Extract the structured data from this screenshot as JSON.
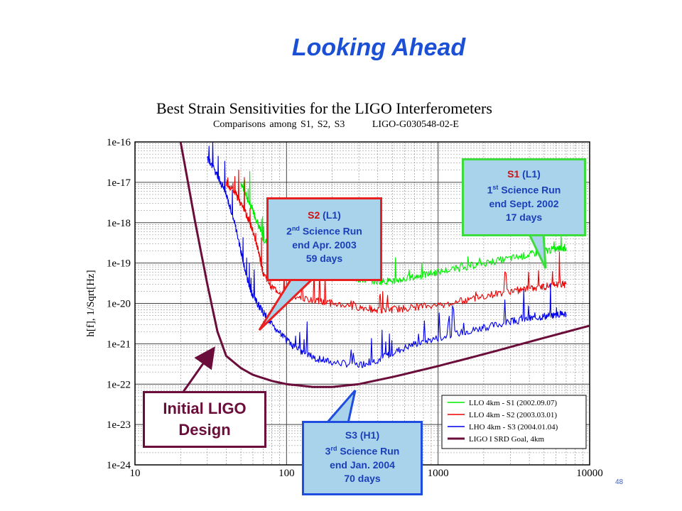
{
  "slide": {
    "title": "Looking Ahead",
    "page_number": "48"
  },
  "chart_data": {
    "type": "line",
    "title": "Best Strain Sensitivities for the LIGO Interferometers",
    "subtitle": "Comparisons among S1, S2, S3",
    "document_id": "LIGO-G030548-02-E",
    "xlabel": "",
    "ylabel": "h[f], 1/Sqrt[Hz]",
    "xscale": "log",
    "yscale": "log",
    "xlim": [
      10,
      10000
    ],
    "ylim": [
      1e-24,
      1e-16
    ],
    "x_tick_labels": [
      "10",
      "100",
      "1000",
      "10000"
    ],
    "y_tick_labels": [
      "1e-16",
      "1e-17",
      "1e-18",
      "1e-19",
      "1e-20",
      "1e-21",
      "1e-22",
      "1e-23",
      "1e-24"
    ],
    "grid": true,
    "legend_position": "bottom-right",
    "series": [
      {
        "name": "LLO 4km - S1 (2002.09.07)",
        "color": "#00ee00",
        "x": [
          50,
          55,
          60,
          65,
          70,
          80,
          100,
          130,
          150,
          200,
          250,
          300,
          400,
          500,
          600,
          800,
          1000,
          1500,
          2000,
          3000,
          4000,
          5000,
          6000,
          7000
        ],
        "y": [
          1e-17,
          4e-18,
          2e-18,
          9e-19,
          4e-19,
          2.5e-19,
          1.3e-19,
          1e-19,
          8e-20,
          5.5e-20,
          4.5e-20,
          4e-20,
          3.5e-20,
          3.6e-20,
          4e-20,
          5e-20,
          6e-20,
          8e-20,
          1e-19,
          1.3e-19,
          1.6e-19,
          2e-19,
          2.2e-19,
          2.4e-19
        ]
      },
      {
        "name": "LLO 4km - S2 (2003.03.01)",
        "color": "#ee0000",
        "x": [
          40,
          45,
          50,
          55,
          60,
          65,
          70,
          80,
          100,
          150,
          200,
          300,
          400,
          500,
          700,
          1000,
          1500,
          2000,
          3000,
          4000,
          5000,
          6000,
          7000
        ],
        "y": [
          1e-17,
          6e-18,
          3e-18,
          1.5e-18,
          6e-19,
          2e-19,
          6e-20,
          2.5e-20,
          1.5e-20,
          1.2e-20,
          1e-20,
          8e-21,
          7e-21,
          7e-21,
          8e-21,
          9e-21,
          1.2e-20,
          1.5e-20,
          2e-20,
          2.3e-20,
          2.6e-20,
          2.8e-20,
          3e-20
        ]
      },
      {
        "name": "LHO 4km - S3 (2004.01.04)",
        "color": "#0000ee",
        "x": [
          30,
          35,
          40,
          45,
          50,
          55,
          60,
          70,
          80,
          100,
          120,
          150,
          200,
          300,
          400,
          500,
          700,
          1000,
          1500,
          2000,
          3000,
          4000,
          5000,
          6000,
          7000
        ],
        "y": [
          4e-17,
          1.5e-17,
          5e-18,
          1.2e-18,
          2e-19,
          4e-20,
          1.5e-20,
          6e-21,
          3e-21,
          1.2e-21,
          7e-22,
          4.5e-22,
          3.5e-22,
          3e-22,
          4e-22,
          6e-22,
          1e-21,
          1.4e-21,
          2e-21,
          2.5e-21,
          3.5e-21,
          4.2e-21,
          4.8e-21,
          5.2e-21,
          5.5e-21
        ]
      },
      {
        "name": "LIGO I SRD Goal, 4km",
        "color": "#6a0d3a",
        "x": [
          20,
          25,
          30,
          35,
          40,
          50,
          60,
          80,
          100,
          150,
          200,
          300,
          500,
          1000,
          2000,
          5000,
          10000
        ],
        "y": [
          1e-16,
          1e-18,
          3e-20,
          2e-21,
          5e-22,
          2.5e-22,
          1.7e-22,
          1.2e-22,
          1e-22,
          8.5e-23,
          8.5e-23,
          1e-22,
          1.5e-22,
          2.8e-22,
          5.5e-22,
          1.4e-21,
          2.8e-21
        ]
      }
    ]
  },
  "callouts": {
    "s1": {
      "name": "S1",
      "ifo": "(L1)",
      "ordinal": "1",
      "suffix": "st",
      "run": "Science Run",
      "end": "end Sept. 2002",
      "days": "17 days"
    },
    "s2": {
      "name": "S2",
      "ifo": "(L1)",
      "ordinal": "2",
      "suffix": "nd",
      "run": "Science Run",
      "end": "end Apr. 2003",
      "days": "59 days"
    },
    "s3": {
      "name": "S3",
      "ifo": "(H1)",
      "ordinal": "3",
      "suffix": "rd",
      "run": "Science Run",
      "end": "end Jan. 2004",
      "days": "70 days"
    },
    "initial": {
      "line1": "Initial LIGO",
      "line2": "Design"
    }
  }
}
